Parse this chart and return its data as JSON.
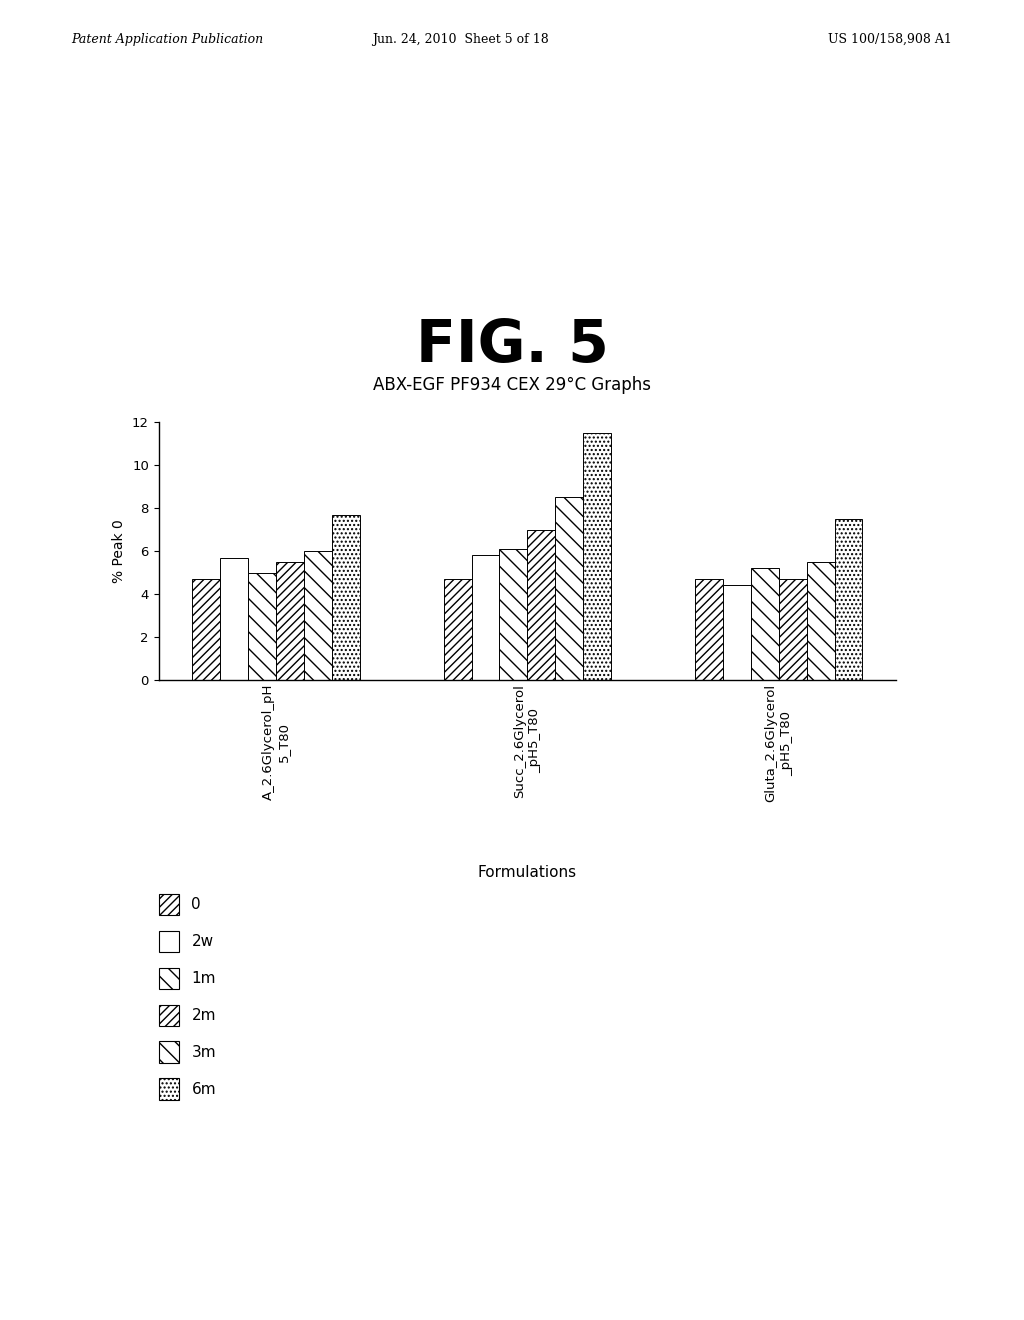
{
  "fig_title": "FIG. 5",
  "subtitle": "ABX-EGF PF934 CEX 29°C Graphs",
  "xlabel": "Formulations",
  "ylabel": "% Peak 0",
  "ylim": [
    0,
    12
  ],
  "yticks": [
    0,
    2,
    4,
    6,
    8,
    10,
    12
  ],
  "groups": [
    "A_2.6Glycerol_pH\n5_T80",
    "Succ_2.6Glycerol\n_pH5_T80",
    "Gluta_2.6Glycerol\n_pH5_T80"
  ],
  "series_labels": [
    "0",
    "2w",
    "1m",
    "2m",
    "3m",
    "6m"
  ],
  "hatch_patterns": [
    "////",
    "",
    "\\\\",
    "////",
    "\\\\",
    "...."
  ],
  "data": [
    [
      4.7,
      5.7,
      5.0,
      5.5,
      6.0,
      7.7
    ],
    [
      4.7,
      5.8,
      6.1,
      7.0,
      8.5,
      11.5
    ],
    [
      4.7,
      4.4,
      5.2,
      4.7,
      5.5,
      7.5
    ]
  ],
  "header_left": "Patent Application Publication",
  "header_center": "Jun. 24, 2010  Sheet 5 of 18",
  "header_right": "US 100/158,908 A1",
  "background_color": "white"
}
